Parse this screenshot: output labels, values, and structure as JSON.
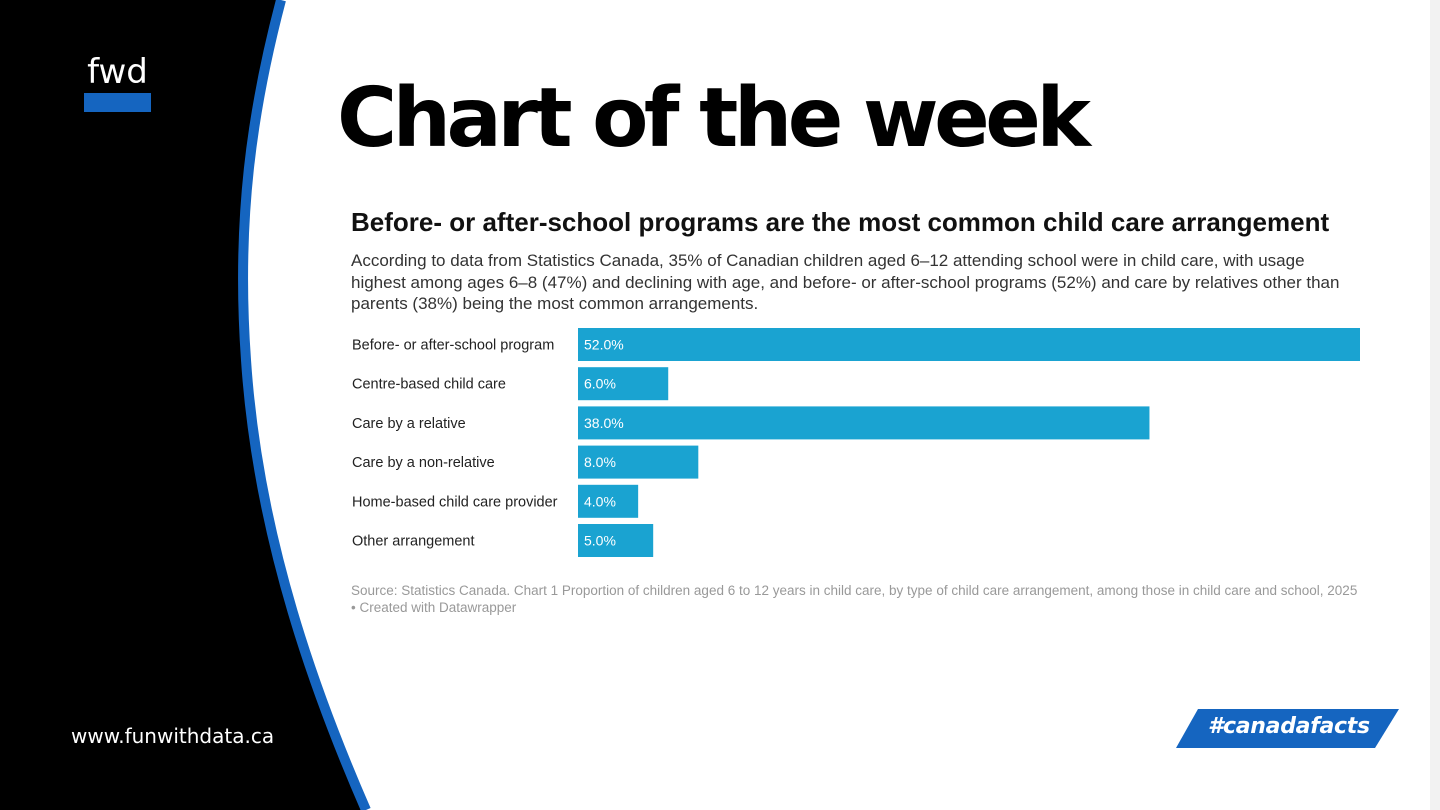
{
  "brand": {
    "logo_text": "fwd",
    "website": "www.funwithdata.ca",
    "hashtag": "#canadafacts",
    "accent_color": "#1565c0",
    "bar_color": "#1aa3d1"
  },
  "page_title": "Chart of the week",
  "chart": {
    "title": "Before- or after-school programs are the most common child care arrangement",
    "description": "According to data from Statistics Canada, 35% of Canadian children aged 6–12 attending school were in child care, with usage highest among ages 6–8 (47%) and declining with age, and before- or after-school programs (52%) and care by relatives other than parents (38%) being the most common arrangements.",
    "source": "Source: Statistics Canada. Chart 1 Proportion of children aged 6 to 12 years in child care, by type of child care arrangement, among those in child care and school, 2025 • Created with Datawrapper"
  },
  "chart_data": {
    "type": "bar",
    "orientation": "horizontal",
    "categories": [
      "Before- or after-school program",
      "Centre-based child care",
      "Care by a relative",
      "Care by a non-relative",
      "Home-based child care provider",
      "Other arrangement"
    ],
    "values": [
      52.0,
      6.0,
      38.0,
      8.0,
      4.0,
      5.0
    ],
    "value_labels": [
      "52.0%",
      "6.0%",
      "38.0%",
      "8.0%",
      "4.0%",
      "5.0%"
    ],
    "xlim": [
      0,
      52
    ],
    "grid": false
  }
}
